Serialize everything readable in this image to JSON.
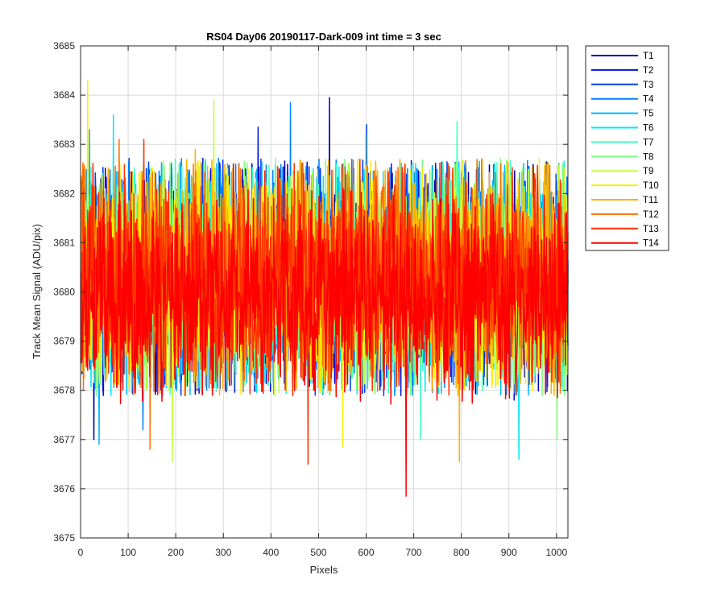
{
  "chart_data": {
    "type": "line",
    "title": "RS04 Day06 20190117-Dark-009 int time = 3 sec",
    "xlabel": "Pixels",
    "ylabel": "Track Mean Signal (ADU/pix)",
    "xlim": [
      0,
      1024
    ],
    "ylim": [
      3675,
      3685
    ],
    "xticks": [
      0,
      100,
      200,
      300,
      400,
      500,
      600,
      700,
      800,
      900,
      1000
    ],
    "yticks": [
      3675,
      3676,
      3677,
      3678,
      3679,
      3680,
      3681,
      3682,
      3683,
      3684,
      3685
    ],
    "grid": true,
    "legend_location": "outside right",
    "n_points": 1024,
    "series": [
      {
        "name": "T1",
        "color": "#0000b0",
        "mean": 3680.3,
        "std": 1.05,
        "extremes": [
          [
            522,
            3683.95
          ],
          [
            27,
            3677.0
          ]
        ]
      },
      {
        "name": "T2",
        "color": "#0010d8",
        "mean": 3680.3,
        "std": 1.05,
        "extremes": [
          [
            372,
            3683.35
          ],
          [
            910,
            3677.8
          ]
        ]
      },
      {
        "name": "T3",
        "color": "#0040f0",
        "mean": 3680.3,
        "std": 1.05,
        "extremes": [
          [
            600,
            3683.4
          ],
          [
            683,
            3677.0
          ]
        ]
      },
      {
        "name": "T4",
        "color": "#0080ff",
        "mean": 3680.3,
        "std": 1.05,
        "extremes": [
          [
            440,
            3683.85
          ],
          [
            130,
            3677.2
          ]
        ]
      },
      {
        "name": "T5",
        "color": "#00b8ff",
        "mean": 3680.3,
        "std": 1.05,
        "extremes": [
          [
            18,
            3683.3
          ],
          [
            38,
            3676.9
          ]
        ]
      },
      {
        "name": "T6",
        "color": "#00e8f8",
        "mean": 3680.3,
        "std": 1.05,
        "extremes": [
          [
            68,
            3683.6
          ],
          [
            920,
            3676.6
          ]
        ]
      },
      {
        "name": "T7",
        "color": "#40ffc0",
        "mean": 3680.3,
        "std": 1.05,
        "extremes": [
          [
            790,
            3683.45
          ],
          [
            713,
            3677.0
          ]
        ]
      },
      {
        "name": "T8",
        "color": "#80ff80",
        "mean": 3680.3,
        "std": 1.05,
        "extremes": [
          [
            598,
            3683.2
          ],
          [
            1000,
            3677.0
          ]
        ]
      },
      {
        "name": "T9",
        "color": "#c0ff40",
        "mean": 3680.3,
        "std": 1.05,
        "extremes": [
          [
            279,
            3683.9
          ],
          [
            192,
            3676.55
          ]
        ]
      },
      {
        "name": "T10",
        "color": "#ffee00",
        "mean": 3680.3,
        "std": 1.05,
        "extremes": [
          [
            14,
            3684.3
          ],
          [
            550,
            3676.85
          ]
        ]
      },
      {
        "name": "T11",
        "color": "#ffb000",
        "mean": 3680.3,
        "std": 1.05,
        "extremes": [
          [
            240,
            3682.9
          ],
          [
            795,
            3676.55
          ]
        ]
      },
      {
        "name": "T12",
        "color": "#ff7000",
        "mean": 3680.3,
        "std": 1.05,
        "extremes": [
          [
            80,
            3683.1
          ],
          [
            145,
            3676.8
          ]
        ]
      },
      {
        "name": "T13",
        "color": "#ff3000",
        "mean": 3680.3,
        "std": 1.05,
        "extremes": [
          [
            132,
            3683.1
          ],
          [
            477,
            3676.5
          ]
        ]
      },
      {
        "name": "T14",
        "color": "#ff0000",
        "mean": 3679.9,
        "std": 0.95,
        "extremes": [
          [
            320,
            3682.6
          ],
          [
            683,
            3675.85
          ]
        ]
      }
    ]
  }
}
